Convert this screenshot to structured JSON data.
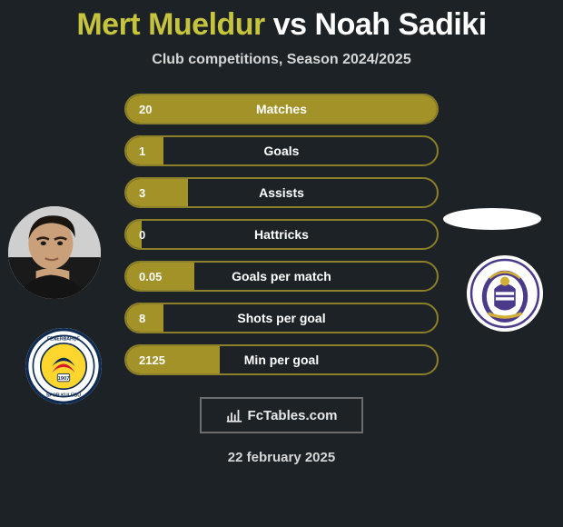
{
  "title": {
    "player1": "Mert Mueldur",
    "vs": "vs",
    "player2": "Noah Sadiki"
  },
  "subtitle": "Club competitions, Season 2024/2025",
  "stats": [
    {
      "label": "Matches",
      "value": "20",
      "fill_pct": 100
    },
    {
      "label": "Goals",
      "value": "1",
      "fill_pct": 12
    },
    {
      "label": "Assists",
      "value": "3",
      "fill_pct": 20
    },
    {
      "label": "Hattricks",
      "value": "0",
      "fill_pct": 5
    },
    {
      "label": "Goals per match",
      "value": "0.05",
      "fill_pct": 22
    },
    {
      "label": "Shots per goal",
      "value": "8",
      "fill_pct": 12
    },
    {
      "label": "Min per goal",
      "value": "2125",
      "fill_pct": 30
    }
  ],
  "colors": {
    "bg": "#1c2226",
    "bar_border": "#8c7f2a",
    "bar_fill": "#a39227",
    "accent_text": "#c6c43d",
    "text": "#ffffff",
    "muted": "#d6d6d6"
  },
  "footer": {
    "brand": "FcTables.com",
    "date": "22 february 2025"
  },
  "badges": {
    "left_club": "Fenerbahçe",
    "right_club": "Anderlecht"
  }
}
